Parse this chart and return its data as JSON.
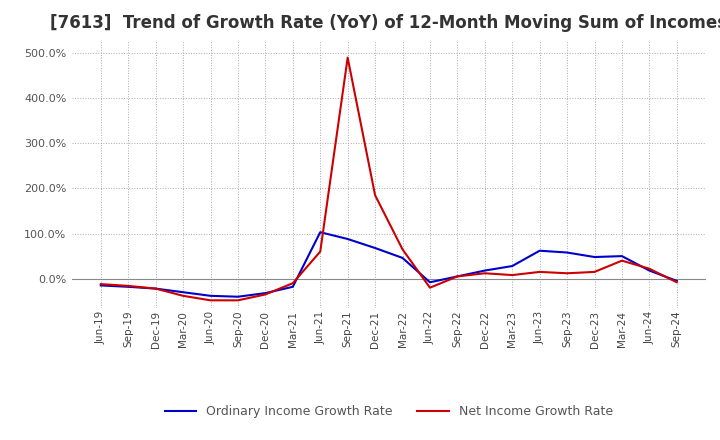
{
  "title": "[7613]  Trend of Growth Rate (YoY) of 12-Month Moving Sum of Incomes",
  "title_fontsize": 12,
  "background_color": "#ffffff",
  "grid_color": "#aaaaaa",
  "legend_labels": [
    "Ordinary Income Growth Rate",
    "Net Income Growth Rate"
  ],
  "line_colors": [
    "#0000cc",
    "#cc0000"
  ],
  "x_labels": [
    "Jun-19",
    "Sep-19",
    "Dec-19",
    "Mar-20",
    "Jun-20",
    "Sep-20",
    "Dec-20",
    "Mar-21",
    "Jun-21",
    "Sep-21",
    "Dec-21",
    "Mar-22",
    "Jun-22",
    "Sep-22",
    "Dec-22",
    "Mar-23",
    "Jun-23",
    "Sep-23",
    "Dec-23",
    "Mar-24",
    "Jun-24",
    "Sep-24"
  ],
  "ordinary_income_growth": [
    -15,
    -18,
    -22,
    -30,
    -38,
    -40,
    -32,
    -18,
    103,
    88,
    68,
    46,
    -8,
    5,
    18,
    28,
    62,
    58,
    48,
    50,
    18,
    -5
  ],
  "net_income_growth": [
    -12,
    -16,
    -22,
    -38,
    -48,
    -48,
    -35,
    -10,
    60,
    490,
    185,
    65,
    -20,
    5,
    12,
    8,
    15,
    12,
    15,
    40,
    22,
    -8
  ],
  "ylim": [
    -65,
    530
  ],
  "yticks": [
    0,
    100,
    200,
    300,
    400,
    500
  ]
}
